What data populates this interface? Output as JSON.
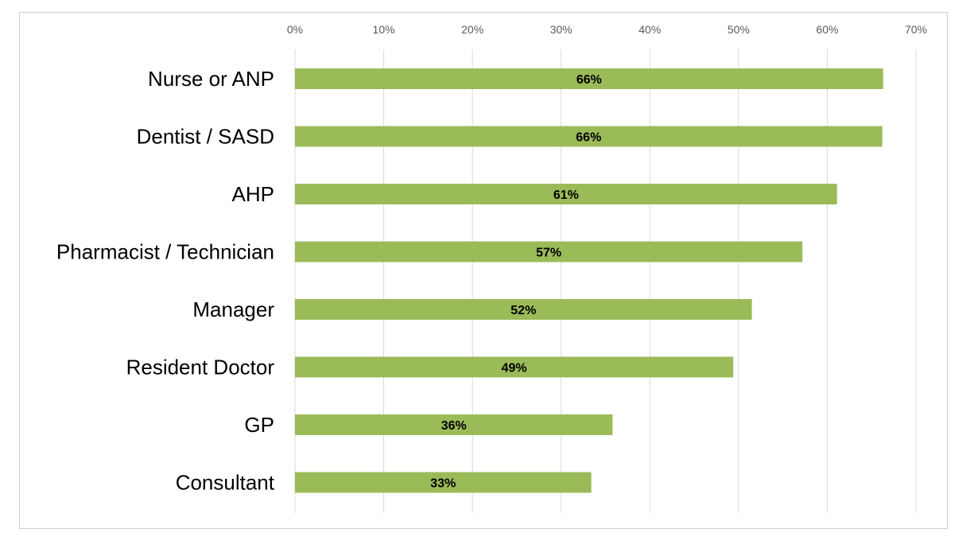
{
  "chart_data": {
    "type": "bar",
    "orientation": "horizontal",
    "categories": [
      "Nurse or ANP",
      "Dentist / SASD",
      "AHP",
      "Pharmacist / Technician",
      "Manager",
      "Resident Doctor",
      "GP",
      "Consultant"
    ],
    "values": [
      66.3,
      66.2,
      61.1,
      57.2,
      51.5,
      49.4,
      35.8,
      33.4
    ],
    "data_labels": [
      "66%",
      "66%",
      "61%",
      "57%",
      "52%",
      "49%",
      "36%",
      "33%"
    ],
    "x_ticks": [
      "0%",
      "10%",
      "20%",
      "30%",
      "40%",
      "50%",
      "60%",
      "70%"
    ],
    "xlim": [
      0,
      70
    ],
    "title": "",
    "xlabel": "",
    "ylabel": "",
    "grid": true,
    "x_axis_position": "top",
    "legend": "none",
    "bar_color": "#9BBB59",
    "grid_color": "#d9d9d9"
  }
}
